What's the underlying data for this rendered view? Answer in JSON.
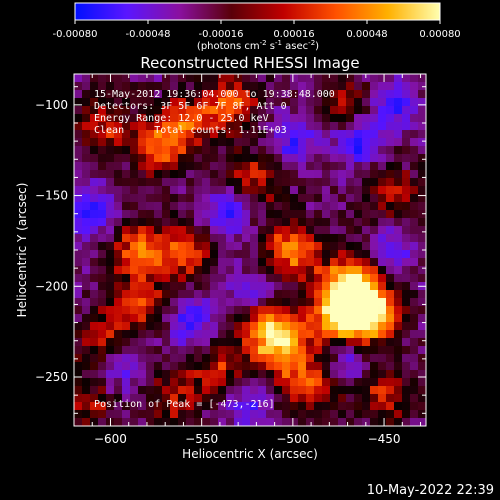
{
  "colorbar": {
    "tick_labels": [
      "-0.00080",
      "-0.00048",
      "-0.00016",
      "0.00016",
      "0.00048",
      "0.00080"
    ],
    "tick_values": [
      -0.0008,
      -0.00048,
      -0.00016,
      0.00016,
      0.00048,
      0.0008
    ],
    "range": [
      -0.0008,
      0.0008
    ],
    "units": {
      "open": "(photons cm",
      "exp1": "-2",
      "mid1": " s",
      "exp2": "-1",
      "mid2": " asec",
      "exp3": "-2",
      "close": ")"
    },
    "colors": [
      "#0010ff",
      "#5a16ff",
      "#8a10a0",
      "#5a0008",
      "#c00000",
      "#ff5000",
      "#ffb000",
      "#ffffb0"
    ]
  },
  "chart_data": {
    "type": "heatmap",
    "title": "Reconstructed RHESSI Image",
    "xlabel": "Heliocentric X (arcsec)",
    "ylabel": "Heliocentric Y (arcsec)",
    "xlim": [
      -620,
      -427
    ],
    "ylim": [
      -277,
      -83
    ],
    "x_ticks": [
      -600,
      -550,
      -500,
      -450
    ],
    "x_tick_labels": [
      "−600",
      "−550",
      "−500",
      "−450"
    ],
    "y_ticks": [
      -250,
      -200,
      -150,
      -100
    ],
    "y_tick_labels": [
      "−250",
      "−200",
      "−150",
      "−100"
    ],
    "info_lines": [
      "15-May-2012 19:36:04.000 to 19:38:48.000",
      "Detectors: 3F 5F 6F 7F 8F, Att 0",
      "Energy Range: 12.0 - 25.0 keV",
      "Clean     Total counts: 1.11E+03"
    ],
    "peak_label": "Position of Peak = [-473,-216]",
    "peak_position": [
      -473,
      -216
    ],
    "hot_regions": [
      {
        "x": -473,
        "y": -216,
        "level": 1.0
      },
      {
        "x": -468,
        "y": -198,
        "level": 0.85
      },
      {
        "x": -455,
        "y": -215,
        "level": 0.8
      },
      {
        "x": -500,
        "y": -180,
        "level": 0.7
      },
      {
        "x": -515,
        "y": -220,
        "level": 0.75
      },
      {
        "x": -505,
        "y": -235,
        "level": 0.65
      },
      {
        "x": -490,
        "y": -255,
        "level": 0.55
      },
      {
        "x": -540,
        "y": -245,
        "level": 0.45
      },
      {
        "x": -585,
        "y": -180,
        "level": 0.6
      },
      {
        "x": -560,
        "y": -182,
        "level": 0.55
      },
      {
        "x": -585,
        "y": -210,
        "level": 0.5
      },
      {
        "x": -605,
        "y": -230,
        "level": 0.45
      },
      {
        "x": -575,
        "y": -125,
        "level": 0.55
      },
      {
        "x": -560,
        "y": -110,
        "level": 0.5
      },
      {
        "x": -605,
        "y": -110,
        "level": 0.45
      },
      {
        "x": -535,
        "y": -100,
        "level": 0.6
      },
      {
        "x": -520,
        "y": -140,
        "level": 0.45
      },
      {
        "x": -470,
        "y": -100,
        "level": 0.4
      },
      {
        "x": -445,
        "y": -150,
        "level": 0.4
      },
      {
        "x": -450,
        "y": -260,
        "level": 0.45
      },
      {
        "x": -565,
        "y": -262,
        "level": 0.4
      },
      {
        "x": -612,
        "y": -265,
        "level": 0.35
      }
    ],
    "cold_regions": [
      {
        "x": -612,
        "y": -160,
        "level": 0.9
      },
      {
        "x": -535,
        "y": -160,
        "level": 0.8
      },
      {
        "x": -520,
        "y": -205,
        "level": 0.85
      },
      {
        "x": -465,
        "y": -120,
        "level": 0.9
      },
      {
        "x": -445,
        "y": -100,
        "level": 0.8
      },
      {
        "x": -500,
        "y": -120,
        "level": 0.7
      },
      {
        "x": -555,
        "y": -220,
        "level": 0.75
      },
      {
        "x": -445,
        "y": -180,
        "level": 0.6
      },
      {
        "x": -595,
        "y": -245,
        "level": 0.6
      },
      {
        "x": -470,
        "y": -240,
        "level": 0.55
      },
      {
        "x": -525,
        "y": -265,
        "level": 0.6
      }
    ]
  },
  "footer": {
    "timestamp": "10-May-2022 22:39"
  }
}
